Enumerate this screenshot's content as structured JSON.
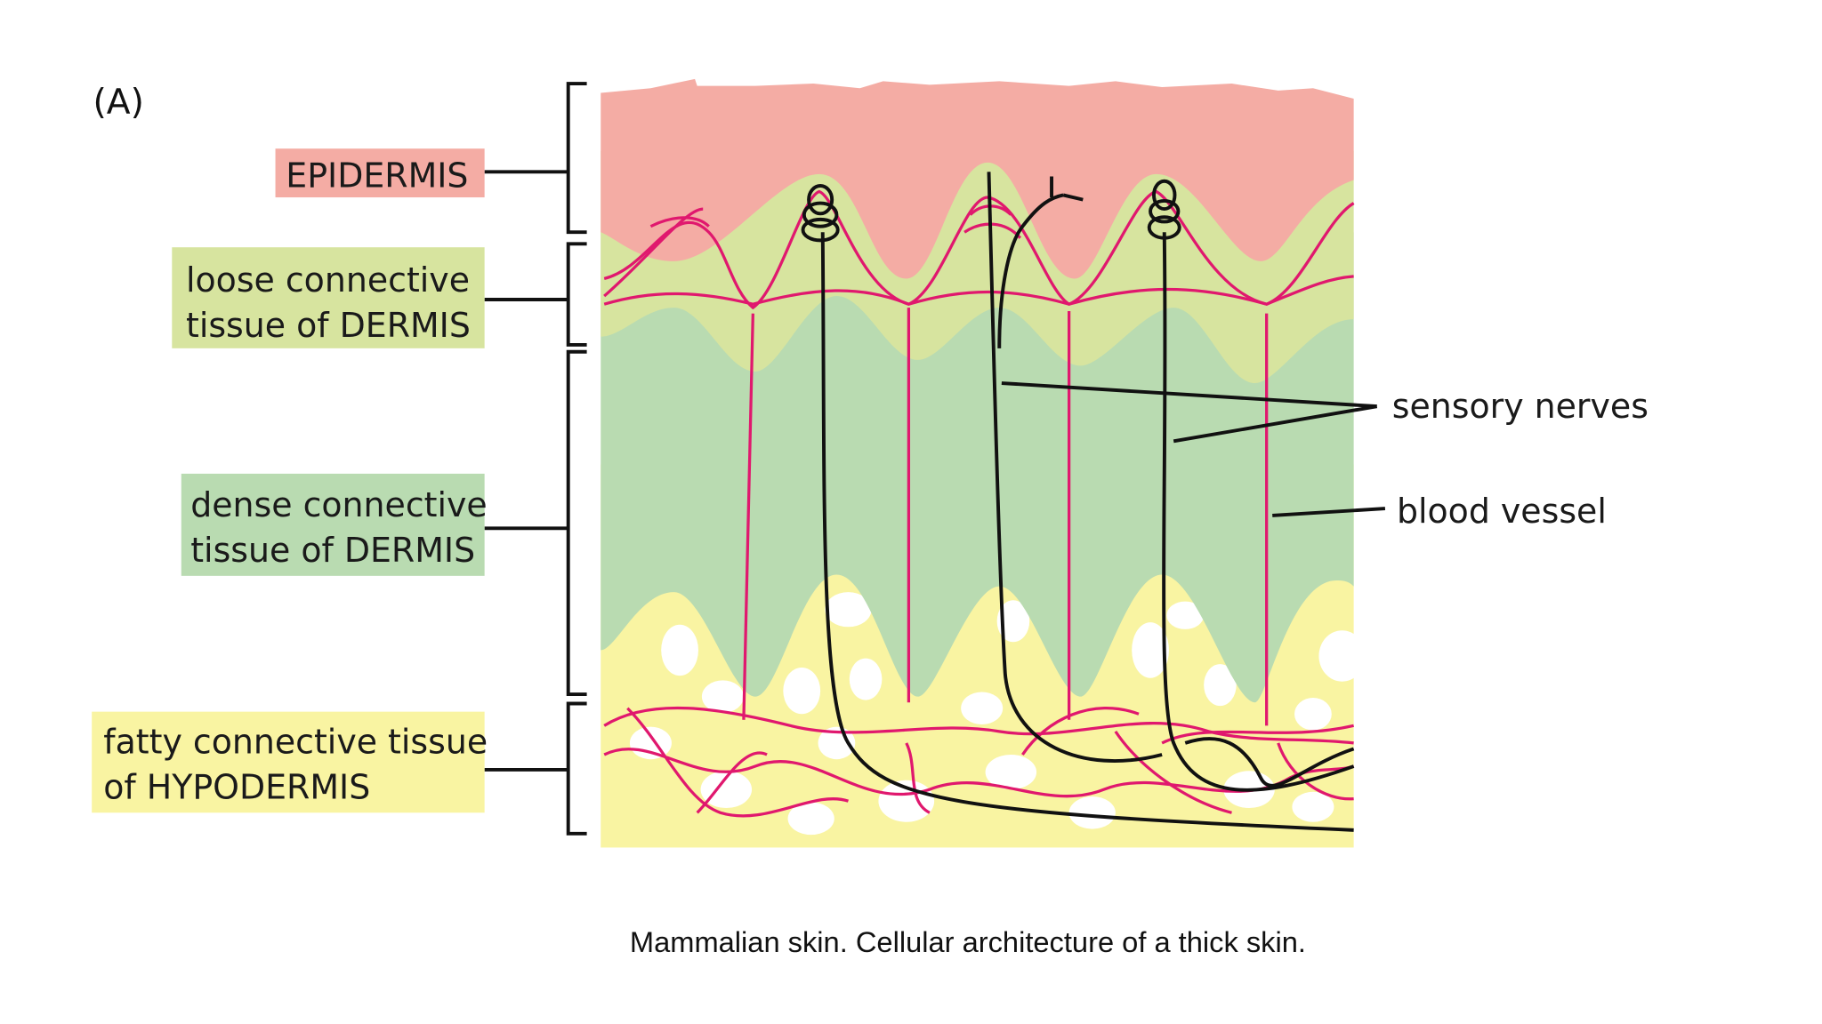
{
  "panel_label": "(A)",
  "layers": [
    {
      "lines": [
        "EPIDERMIS"
      ]
    },
    {
      "lines": [
        "loose connective",
        "tissue of DERMIS"
      ]
    },
    {
      "lines": [
        "dense connective",
        "tissue of DERMIS"
      ]
    },
    {
      "lines": [
        "fatty connective tissue",
        "of HYPODERMIS"
      ]
    }
  ],
  "callouts": [
    "sensory nerves",
    "blood vessel"
  ],
  "caption": "Mammalian skin. Cellular architecture of a thick skin."
}
